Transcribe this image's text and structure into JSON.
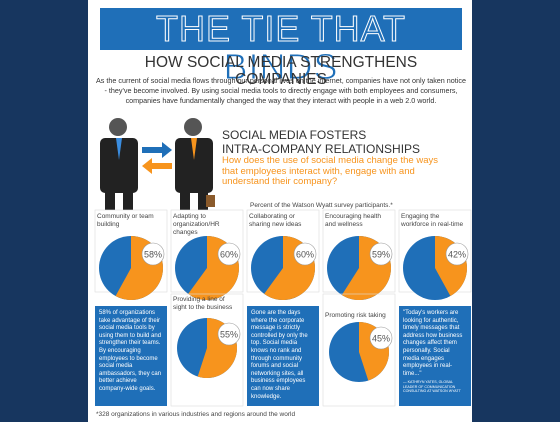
{
  "header": {
    "title": "THE TIE THAT BINDS",
    "subtitle": "HOW SOCIAL MEDIA STRENGTHENS COMPANIES",
    "intro": "As the current of social media flows through our personal lives on the internet, companies have not only taken notice - they've become involved. By using social media tools to directly engage with both employees and consumers, companies have fundamentally changed the way that they interact with people in a web 2.0 world."
  },
  "section": {
    "heading_line1": "SOCIAL MEDIA FOSTERS",
    "heading_line2": "INTRA-COMPANY RELATIONSHIPS",
    "question": "How does the use of social media change the ways that employees interact with, engage with and understand their company?"
  },
  "survey": {
    "note": "Percent of the Watson Wyatt survey participants.*",
    "top": [
      {
        "label": "Community or team building",
        "value": 58,
        "value_label": "58%"
      },
      {
        "label": "Adapting to organization/HR changes",
        "value": 60,
        "value_label": "60%"
      },
      {
        "label": "Collaborating or sharing new ideas",
        "value": 60,
        "value_label": "60%"
      },
      {
        "label": "Encouraging health and wellness",
        "value": 59,
        "value_label": "59%"
      },
      {
        "label": "Engaging the workforce in real-time",
        "value": 42,
        "value_label": "42%"
      }
    ],
    "bottom": [
      {
        "text": "58% of organizations take advantage of their social media tools by using them to build and strengthen their teams. By encouraging employees to become social media ambassadors, they can better achieve company-wide goals."
      },
      {
        "label": "Providing a line of sight to the business",
        "value": 55,
        "value_label": "55%"
      },
      {
        "text": "Gone are the days where the corporate message is strictly controlled by only the top. Social media knows no rank and through community forums and social networking sites, all business employees can now share knowledge."
      },
      {
        "label": "Promoting risk taking",
        "value": 45,
        "value_label": "45%"
      },
      {
        "text": "\"Today's workers are looking for authentic, timely messages that address how business changes affect them personally. Social media engages employees in real-time...\"",
        "attribution": "— KATHRYN YATES, GLOBAL LEADER OF COMMUNICATION CONSULTING AT WATSON WYATT"
      }
    ],
    "footnote": "*328 organizations in various industries and regions around the world"
  }
}
